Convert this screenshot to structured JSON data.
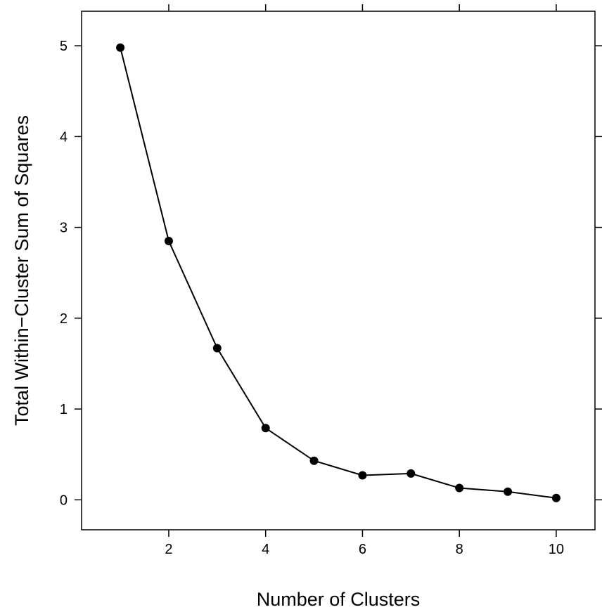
{
  "chart_data": {
    "type": "line",
    "title": "",
    "xlabel": "Number of Clusters",
    "ylabel": "Total Within−Cluster Sum of Squares",
    "x": [
      1,
      2,
      3,
      4,
      5,
      6,
      7,
      8,
      9,
      10
    ],
    "series": [
      {
        "values": [
          4.98,
          2.85,
          1.67,
          0.79,
          0.43,
          0.27,
          0.29,
          0.13,
          0.09,
          0.02
        ]
      }
    ],
    "xlim": [
      0.2,
      10.8
    ],
    "ylim": [
      -0.33,
      5.38
    ],
    "xticks": [
      2,
      4,
      6,
      8,
      10
    ],
    "xtick_labels": [
      "2",
      "4",
      "6",
      "8",
      "10"
    ],
    "yticks": [
      0,
      1,
      2,
      3,
      4,
      5
    ],
    "ytick_labels": [
      "0",
      "1",
      "2",
      "3",
      "4",
      "5"
    ],
    "grid": false,
    "legend": "none",
    "colors": {
      "line": "#000000",
      "marker": "#000000",
      "frame": "#000000"
    }
  }
}
